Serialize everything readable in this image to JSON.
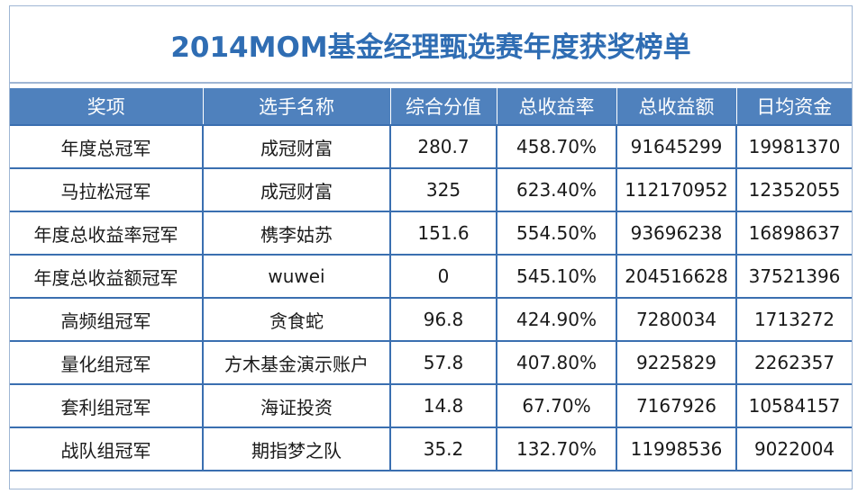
{
  "title": "2014MOM基金经理甄选赛年度获奖榜单",
  "table": {
    "headers": [
      "奖项",
      "选手名称",
      "综合分值",
      "总收益率",
      "总收益额",
      "日均资金"
    ],
    "rows": [
      [
        "年度总冠军",
        "成冠财富",
        "280.7",
        "458.70%",
        "91645299",
        "19981370"
      ],
      [
        "马拉松冠军",
        "成冠财富",
        "325",
        "623.40%",
        "112170952",
        "12352055"
      ],
      [
        "年度总收益率冠军",
        "槜李姑苏",
        "151.6",
        "554.50%",
        "93696238",
        "16898637"
      ],
      [
        "年度总收益额冠军",
        "wuwei",
        "0",
        "545.10%",
        "204516628",
        "37521396"
      ],
      [
        "高频组冠军",
        "贪食蛇",
        "96.8",
        "424.90%",
        "7280034",
        "1713272"
      ],
      [
        "量化组冠军",
        "方木基金演示账户",
        "57.8",
        "407.80%",
        "9225829",
        "2262357"
      ],
      [
        "套利组冠军",
        "海证投资",
        "14.8",
        "67.70%",
        "7167926",
        "10584157"
      ],
      [
        "战队组冠军",
        "期指梦之队",
        "35.2",
        "132.70%",
        "11998536",
        "9022004"
      ]
    ]
  },
  "colors": {
    "title": "#2f6db3",
    "header_bg": "#4f81bd",
    "grid_line": "#3a6fb0"
  }
}
